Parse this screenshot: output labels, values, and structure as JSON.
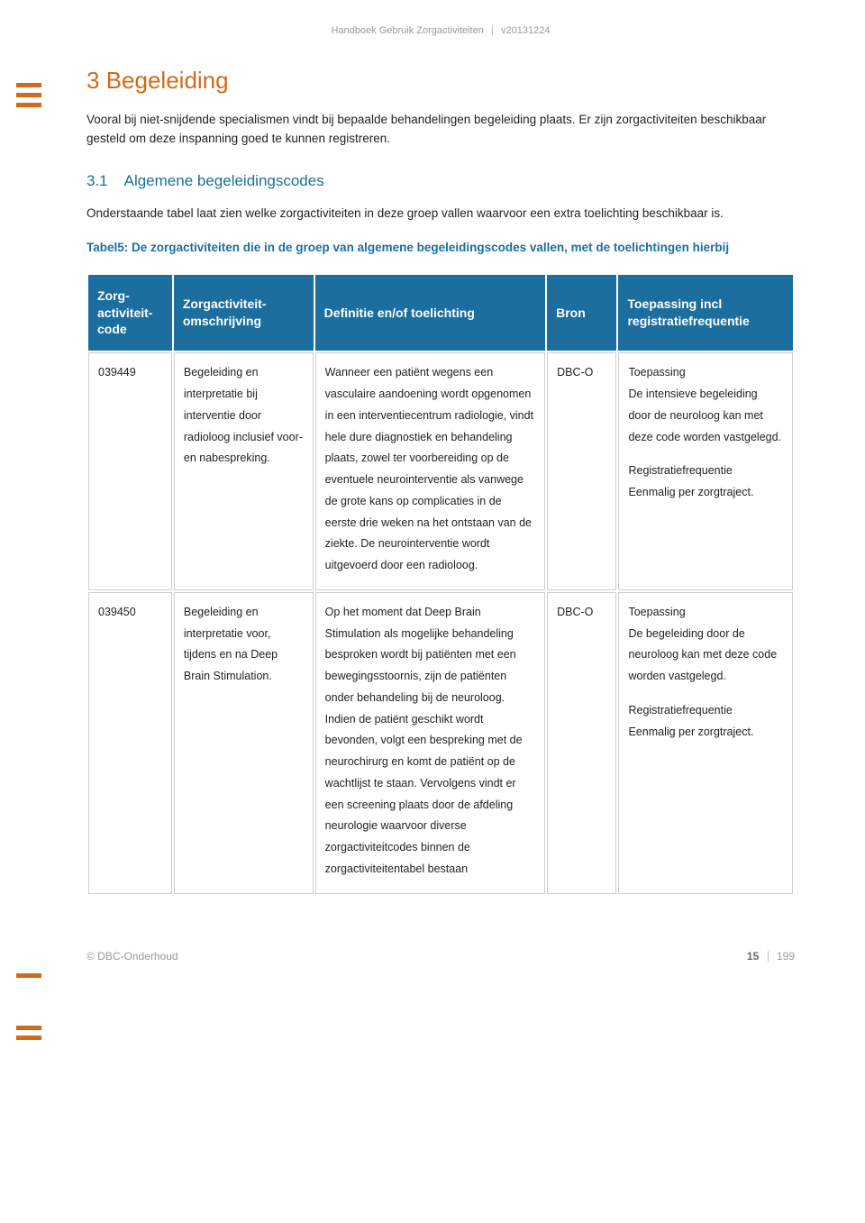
{
  "colors": {
    "accent_orange": "#d16a1a",
    "heading_blue": "#1b6e9e",
    "table_header_bg": "#1b6e9e",
    "table_header_fg": "#ffffff",
    "cell_border": "#cfcfcf",
    "body_text": "#222222",
    "muted_text": "#9a9a9a",
    "page_bg": "#ffffff"
  },
  "header": {
    "title": "Handboek Gebruik Zorgactiviteiten",
    "version": "v20131224"
  },
  "section": {
    "number": "3",
    "title": "Begeleiding",
    "intro": "Vooral bij niet-snijdende specialismen vindt bij bepaalde behandelingen begeleiding plaats. Er zijn zorgactiviteiten beschikbaar gesteld om deze inspanning goed te kunnen registreren."
  },
  "subsection": {
    "number": "3.1",
    "title": "Algemene begeleidingscodes",
    "intro": "Onderstaande tabel laat zien welke zorgactiviteiten in deze groep vallen waarvoor een extra toelichting beschikbaar is.",
    "caption": "Tabel5: De zorgactiviteiten die in de groep van algemene begeleidingscodes vallen, met de toelichtingen hierbij"
  },
  "table": {
    "columns": {
      "code": "Zorg-activiteit-code",
      "omschrijving": "Zorgactiviteit-omschrijving",
      "definitie": "Definitie en/of toelichting",
      "bron": "Bron",
      "toepassing": "Toepassing incl registratiefrequentie"
    },
    "col_widths_pct": [
      12,
      20,
      33,
      10,
      25
    ],
    "rows": [
      {
        "code": "039449",
        "omschrijving": "Begeleiding en interpretatie bij interventie door radioloog inclusief voor- en nabespreking.",
        "definitie": "Wanneer een patiënt wegens een vasculaire aandoening wordt opgenomen in een interventiecentrum radiologie, vindt hele dure diagnostiek en behandeling plaats, zowel ter voorbereiding op de eventuele neurointerventie als vanwege de grote kans op complicaties in de eerste drie weken na het ontstaan van de ziekte. De neurointerventie wordt uitgevoerd door een radioloog.",
        "bron": "DBC-O",
        "toepassing_label": "Toepassing",
        "toepassing_text": "De intensieve begeleiding door de neuroloog kan met deze code worden vastgelegd.",
        "freq_label": "Registratiefrequentie",
        "freq_text": "Eenmalig per zorgtraject."
      },
      {
        "code": "039450",
        "omschrijving": "Begeleiding en interpretatie voor, tijdens en na Deep Brain Stimulation.",
        "definitie": "Op het moment dat Deep Brain Stimulation als mogelijke behandeling besproken wordt bij patiënten met een bewegingsstoornis, zijn de patiënten onder behandeling bij de neuroloog. Indien de patiënt geschikt wordt bevonden, volgt een bespreking met de neurochirurg en komt de patiënt op de wachtlijst te staan. Vervolgens vindt er een screening plaats door de afdeling neurologie waarvoor diverse zorgactiviteitcodes binnen de zorgactiviteitentabel bestaan",
        "bron": "DBC-O",
        "toepassing_label": "Toepassing",
        "toepassing_text": "De begeleiding door de neuroloog kan met deze code worden vastgelegd.",
        "freq_label": "Registratiefrequentie",
        "freq_text": "Eenmalig per zorgtraject."
      }
    ]
  },
  "footer": {
    "copyright": "© DBC-Onderhoud",
    "page_current": "15",
    "page_total": "199"
  }
}
